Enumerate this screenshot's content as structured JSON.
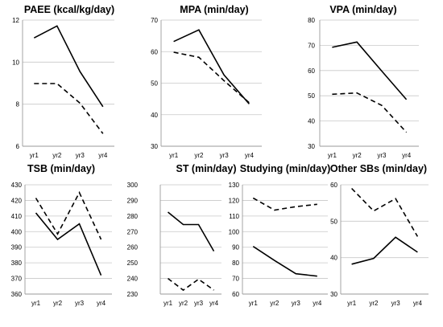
{
  "chart_data": [
    {
      "type": "line",
      "title": "PAEE (kcal/kg/day)",
      "categories": [
        "yr1",
        "yr2",
        "yr3",
        "yr4"
      ],
      "ylim": [
        6,
        12
      ],
      "yticks": [
        6,
        8,
        10,
        12
      ],
      "grid": true,
      "series": [
        {
          "style": "solid",
          "values": [
            11.15,
            11.72,
            9.55,
            7.88
          ]
        },
        {
          "style": "dashed",
          "values": [
            8.98,
            8.98,
            8.05,
            6.6
          ]
        }
      ]
    },
    {
      "type": "line",
      "title": "MPA (min/day)",
      "categories": [
        "yr1",
        "yr2",
        "yr3",
        "yr4"
      ],
      "ylim": [
        30,
        70
      ],
      "yticks": [
        30,
        40,
        50,
        60,
        70
      ],
      "grid": true,
      "series": [
        {
          "style": "solid",
          "values": [
            63.2,
            66.9,
            52.6,
            43.4
          ]
        },
        {
          "style": "dashed",
          "values": [
            59.8,
            58.2,
            50.8,
            43.8
          ]
        }
      ]
    },
    {
      "type": "line",
      "title": "VPA (min/day)",
      "categories": [
        "yr1",
        "yr2",
        "yr3",
        "yr4"
      ],
      "ylim": [
        30,
        80
      ],
      "yticks": [
        30,
        40,
        50,
        60,
        70,
        80
      ],
      "grid": true,
      "series": [
        {
          "style": "solid",
          "values": [
            69.2,
            71.3,
            59.8,
            48.5
          ]
        },
        {
          "style": "dashed",
          "values": [
            50.6,
            51.1,
            46.2,
            35.5
          ]
        }
      ]
    },
    {
      "type": "line",
      "title": "TSB (min/day)",
      "categories": [
        "yr1",
        "yr2",
        "yr3",
        "yr4"
      ],
      "ylim": [
        360,
        430
      ],
      "yticks": [
        360,
        370,
        380,
        390,
        400,
        410,
        420,
        430
      ],
      "grid": true,
      "series": [
        {
          "style": "solid",
          "values": [
            412,
            395,
            405,
            372
          ]
        },
        {
          "style": "dashed",
          "values": [
            421.5,
            398.5,
            425,
            395
          ]
        }
      ]
    },
    {
      "type": "line",
      "title": "ST (min/day)",
      "categories": [
        "yr1",
        "yr2",
        "yr3",
        "yr4"
      ],
      "ylim": [
        230,
        300
      ],
      "yticks": [
        230,
        240,
        250,
        260,
        270,
        280,
        290,
        300
      ],
      "grid": true,
      "series": [
        {
          "style": "solid",
          "values": [
            282.5,
            274.5,
            274.5,
            257.5
          ]
        },
        {
          "style": "dashed",
          "values": [
            240,
            232.5,
            239.5,
            232.5
          ]
        }
      ]
    },
    {
      "type": "line",
      "title": "Studying (min/day)",
      "categories": [
        "yr1",
        "yr2",
        "yr3",
        "yr4"
      ],
      "ylim": [
        60,
        130
      ],
      "yticks": [
        60,
        70,
        80,
        90,
        100,
        110,
        120,
        130
      ],
      "grid": true,
      "series": [
        {
          "style": "solid",
          "values": [
            90.5,
            81.5,
            73,
            71.5
          ]
        },
        {
          "style": "dashed",
          "values": [
            121.5,
            113.8,
            116,
            117.5
          ]
        }
      ]
    },
    {
      "type": "line",
      "title": "Other SBs (min/day)",
      "categories": [
        "yr1",
        "yr2",
        "yr3",
        "yr4"
      ],
      "ylim": [
        30,
        60
      ],
      "yticks": [
        30,
        40,
        50,
        60
      ],
      "grid": true,
      "series": [
        {
          "style": "solid",
          "values": [
            38.2,
            39.8,
            45.6,
            41.5
          ]
        },
        {
          "style": "dashed",
          "values": [
            59,
            52.8,
            56.2,
            45.8
          ]
        }
      ]
    }
  ]
}
